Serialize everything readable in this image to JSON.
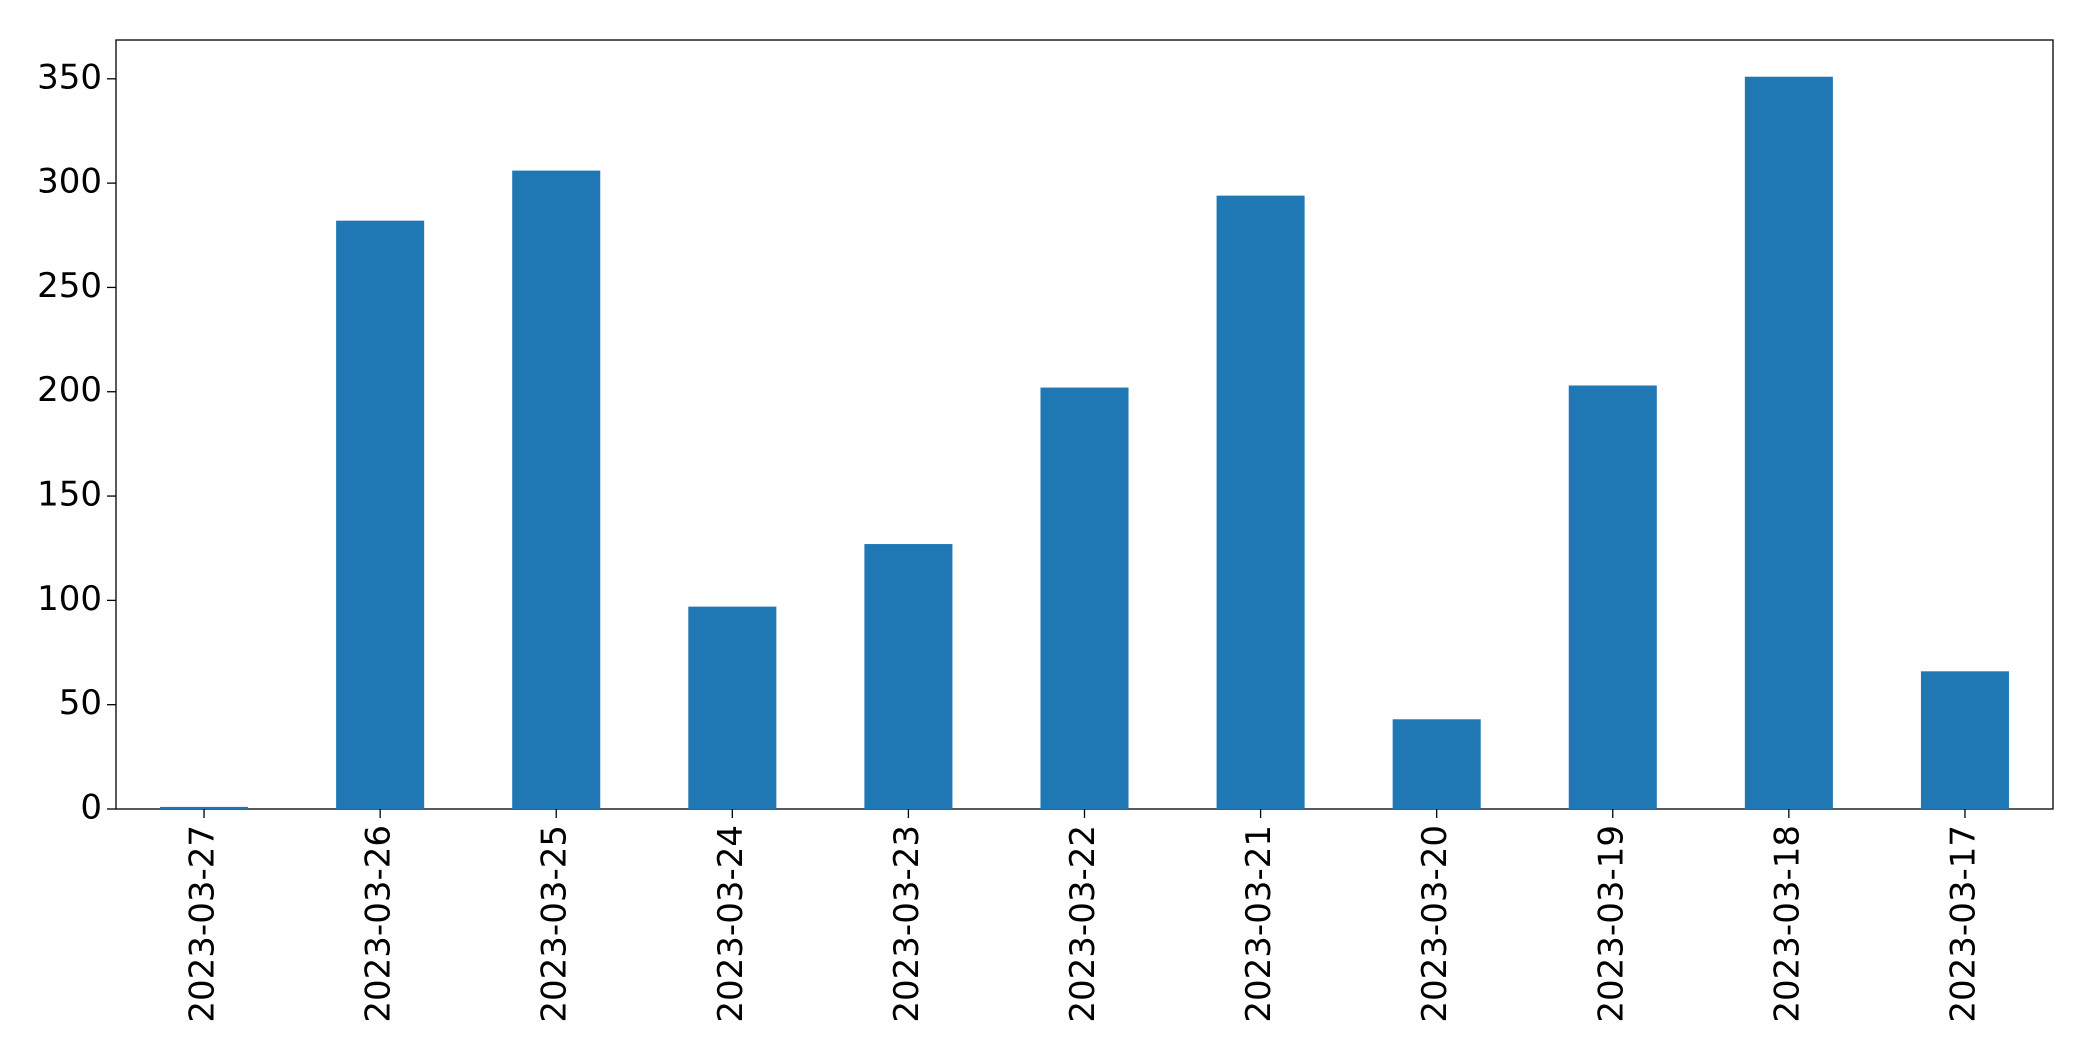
{
  "chart_data": {
    "type": "bar",
    "categories": [
      "2023-03-27",
      "2023-03-26",
      "2023-03-25",
      "2023-03-24",
      "2023-03-23",
      "2023-03-22",
      "2023-03-21",
      "2023-03-20",
      "2023-03-19",
      "2023-03-18",
      "2023-03-17"
    ],
    "values": [
      1,
      282,
      306,
      97,
      127,
      202,
      294,
      43,
      203,
      351,
      66
    ],
    "color": "#1f77b4",
    "ylim": [
      0,
      368.6
    ],
    "yticks": [
      0,
      50,
      100,
      150,
      200,
      250,
      300,
      350
    ],
    "grid": false
  }
}
